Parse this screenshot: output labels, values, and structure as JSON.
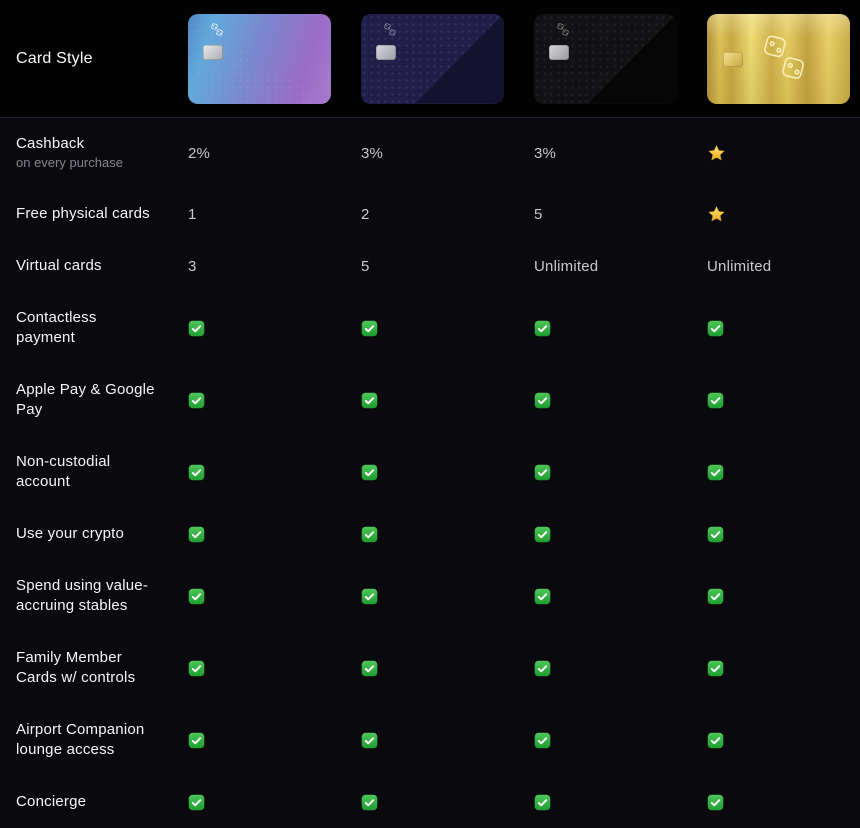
{
  "colors": {
    "background": "#0a0a0e",
    "header_background": "#020203",
    "divider": "#232329",
    "check_green": "#2db63d",
    "star_gold": "#f6c443",
    "label_text": "#f5f5f7",
    "value_text": "#c8c8cd",
    "sublabel_text": "#84848d"
  },
  "table": {
    "header": {
      "label": "Card Style",
      "cards": [
        {
          "name": "blue-purple-gradient-card",
          "style": "blue"
        },
        {
          "name": "navy-card",
          "style": "navy"
        },
        {
          "name": "black-card",
          "style": "black"
        },
        {
          "name": "gold-card",
          "style": "gold"
        }
      ]
    },
    "rows": [
      {
        "label": "Cashback",
        "sublabel": "on every purchase",
        "values": [
          "2%",
          "3%",
          "3%",
          "star"
        ]
      },
      {
        "label": "Free physical cards",
        "values": [
          "1",
          "2",
          "5",
          "star"
        ]
      },
      {
        "label": "Virtual cards",
        "values": [
          "3",
          "5",
          "Unlimited",
          "Unlimited"
        ]
      },
      {
        "label": "Contactless payment",
        "values": [
          "check",
          "check",
          "check",
          "check"
        ]
      },
      {
        "label": "Apple Pay & Google Pay",
        "values": [
          "check",
          "check",
          "check",
          "check"
        ]
      },
      {
        "label": "Non-custodial account",
        "values": [
          "check",
          "check",
          "check",
          "check"
        ]
      },
      {
        "label": "Use your crypto",
        "values": [
          "check",
          "check",
          "check",
          "check"
        ]
      },
      {
        "label": "Spend using value-accruing stables",
        "values": [
          "check",
          "check",
          "check",
          "check"
        ]
      },
      {
        "label": "Family Member Cards w/ controls",
        "values": [
          "check",
          "check",
          "check",
          "check"
        ]
      },
      {
        "label": "Airport Companion lounge access",
        "values": [
          "check",
          "check",
          "check",
          "check"
        ]
      },
      {
        "label": "Concierge",
        "values": [
          "check",
          "check",
          "check",
          "check"
        ]
      }
    ]
  }
}
